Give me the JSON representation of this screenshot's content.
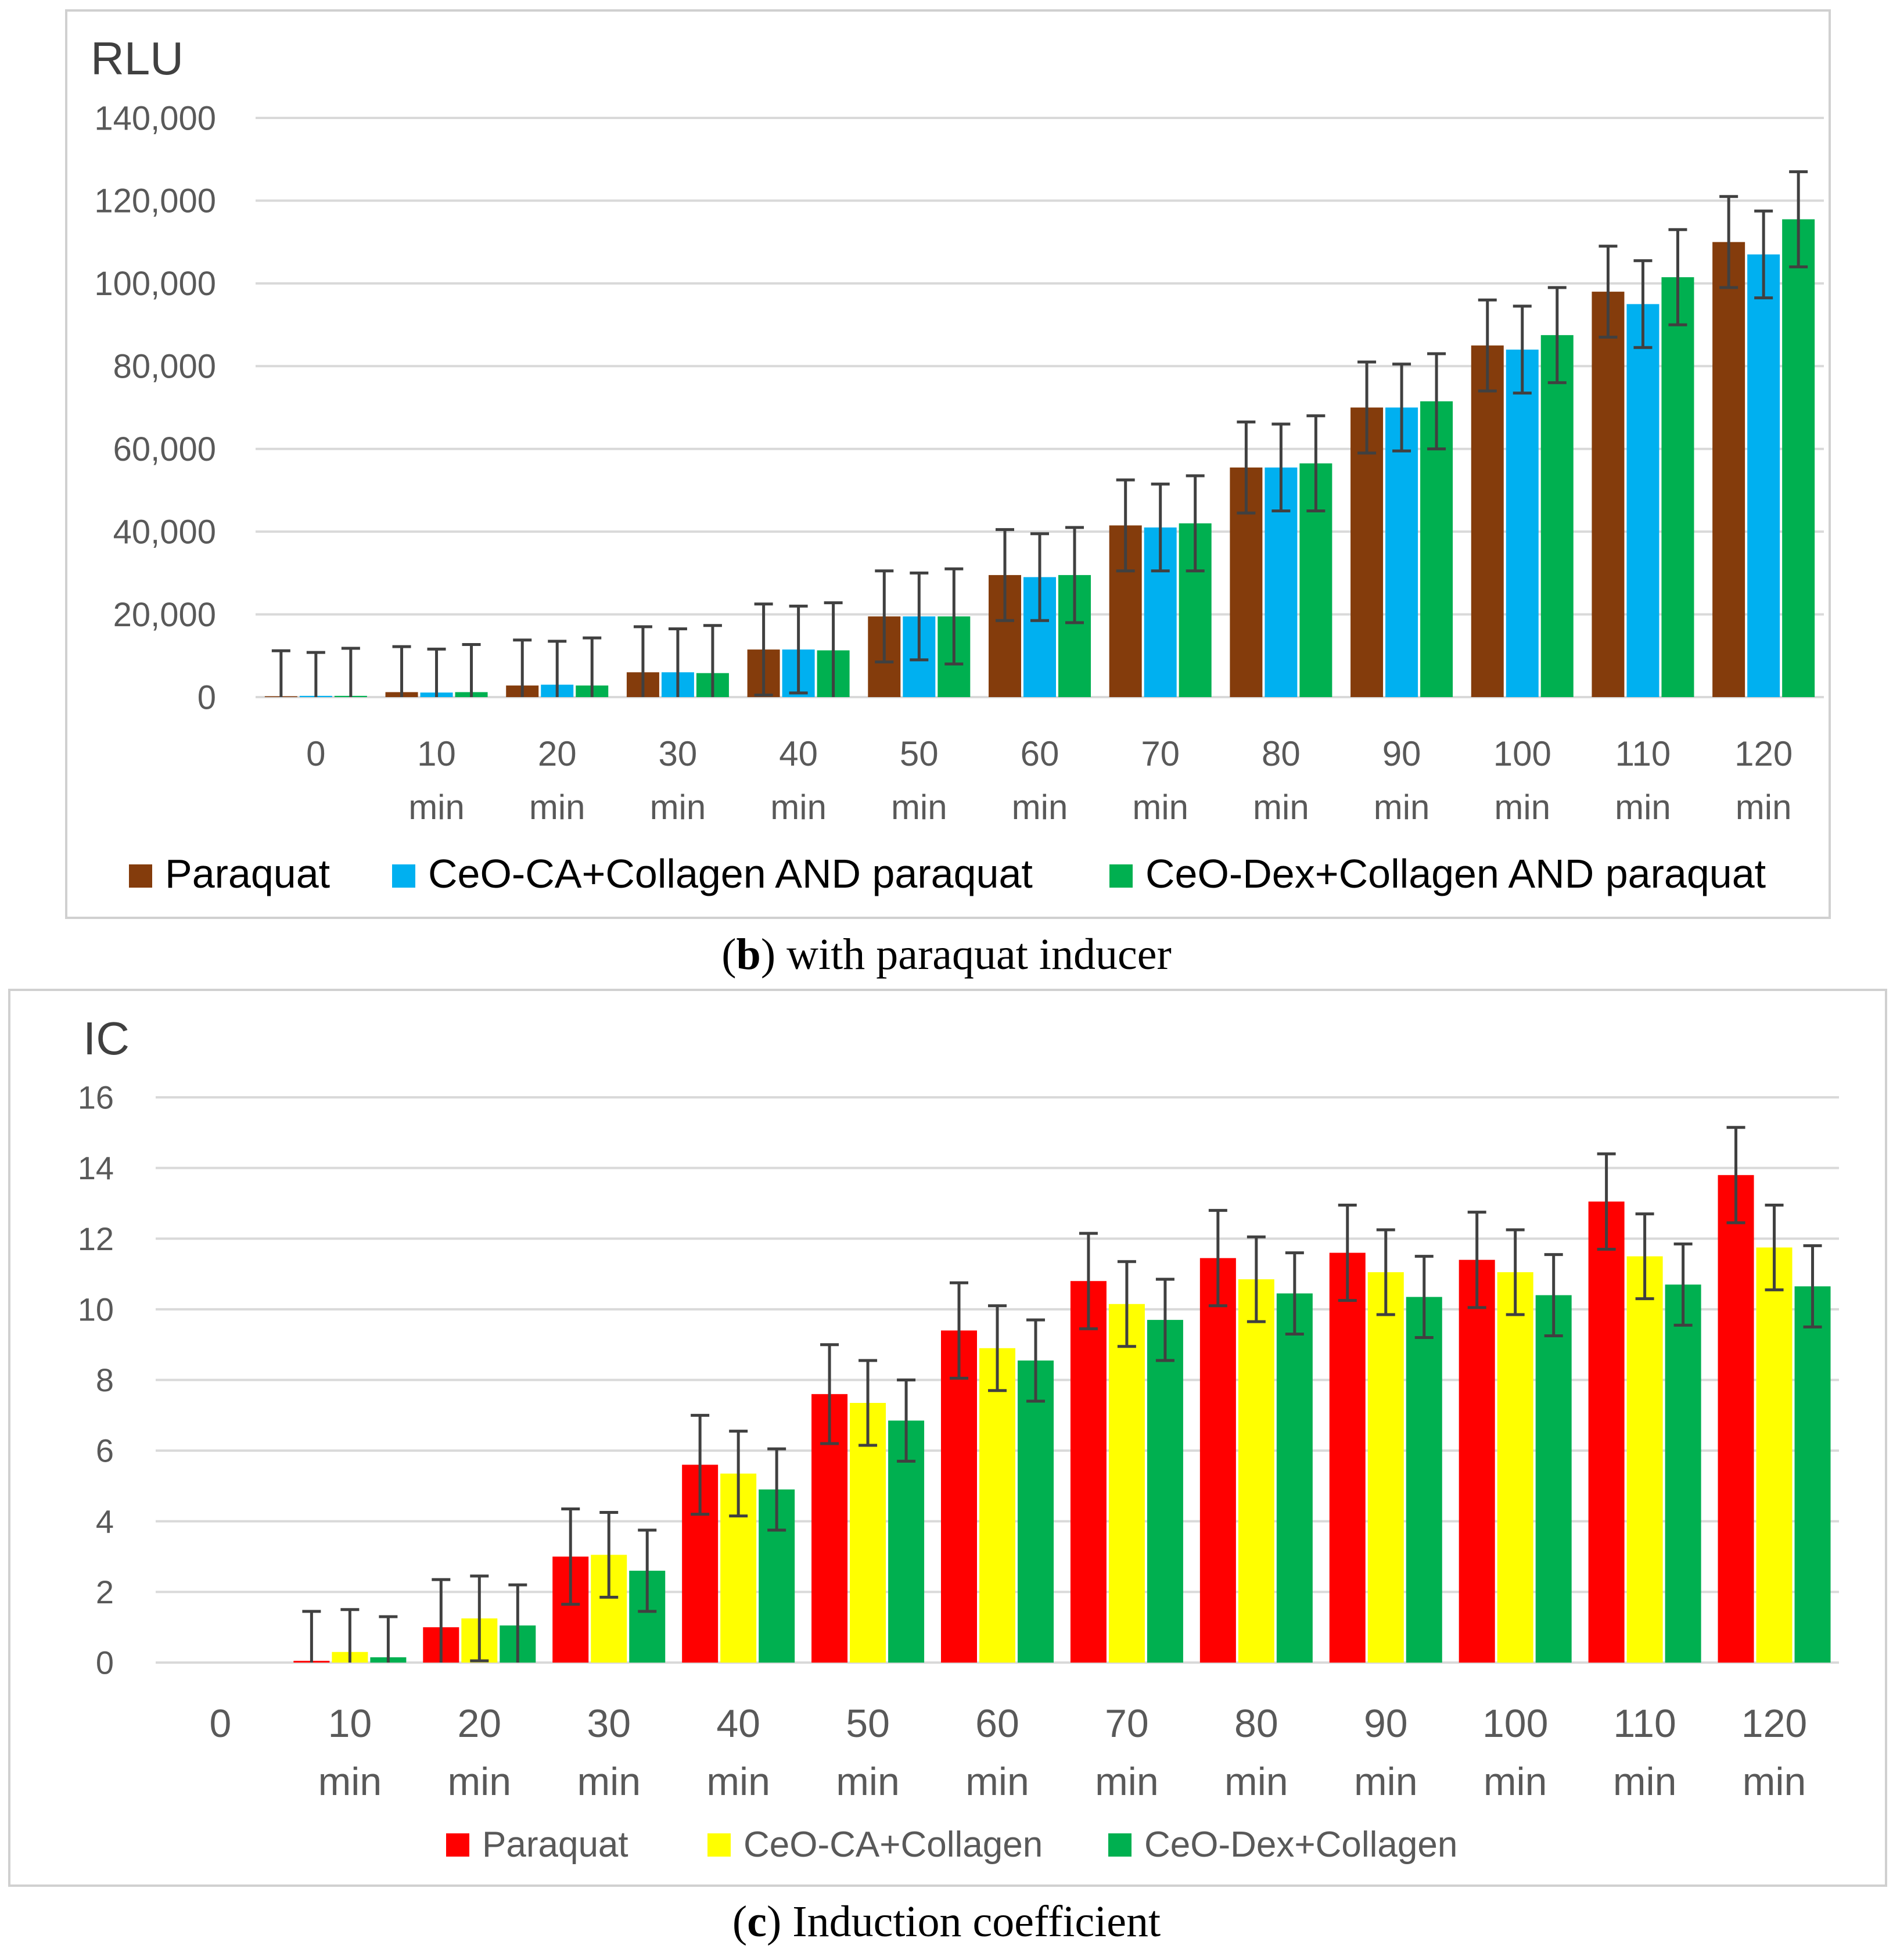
{
  "figures": [
    {
      "caption_letter": "b",
      "caption_text": ") with paraquat inducer"
    },
    {
      "caption_letter": "c",
      "caption_text": ") Induction coefficient"
    }
  ],
  "chart_data": [
    {
      "type": "bar",
      "title": "",
      "ylabel": "RLU",
      "xlabel": "",
      "ylim": [
        0,
        140000
      ],
      "yticks": [
        0,
        20000,
        40000,
        60000,
        80000,
        100000,
        120000,
        140000
      ],
      "ytick_labels": [
        "0",
        "20,000",
        "40,000",
        "60,000",
        "80,000",
        "100,000",
        "120,000",
        "140,000"
      ],
      "categories": [
        [
          "0",
          ""
        ],
        [
          "10",
          "min"
        ],
        [
          "20",
          "min"
        ],
        [
          "30",
          "min"
        ],
        [
          "40",
          "min"
        ],
        [
          "50",
          "min"
        ],
        [
          "60",
          "min"
        ],
        [
          "70",
          "min"
        ],
        [
          "80",
          "min"
        ],
        [
          "90",
          "min"
        ],
        [
          "100",
          "min"
        ],
        [
          "110",
          "min"
        ],
        [
          "120",
          "min"
        ]
      ],
      "series": [
        {
          "name": "Paraquat",
          "color": "#843C0C",
          "values": [
            200,
            1200,
            2800,
            6000,
            11500,
            19500,
            29500,
            41500,
            55500,
            70000,
            85000,
            98000,
            110000
          ],
          "errors": [
            11000,
            11000,
            11000,
            11000,
            11000,
            11000,
            11000,
            11000,
            11000,
            11000,
            11000,
            11000,
            11000
          ]
        },
        {
          "name": "CeO-CA+Collagen AND paraquat",
          "color": "#00B0F0",
          "values": [
            300,
            1100,
            3000,
            6000,
            11500,
            19500,
            29000,
            41000,
            55500,
            70000,
            84000,
            95000,
            107000
          ],
          "errors": [
            10500,
            10500,
            10500,
            10500,
            10500,
            10500,
            10500,
            10500,
            10500,
            10500,
            10500,
            10500,
            10500
          ]
        },
        {
          "name": "CeO-Dex+Collagen AND paraquat",
          "color": "#00B050",
          "values": [
            300,
            1200,
            2800,
            5800,
            11300,
            19500,
            29500,
            42000,
            56500,
            71500,
            87500,
            101500,
            115500
          ],
          "errors": [
            11500,
            11500,
            11500,
            11500,
            11500,
            11500,
            11500,
            11500,
            11500,
            11500,
            11500,
            11500,
            11500
          ]
        }
      ],
      "legend_position": "bottom",
      "grid": true
    },
    {
      "type": "bar",
      "title": "",
      "ylabel": "IC",
      "xlabel": "",
      "ylim": [
        0,
        16
      ],
      "yticks": [
        0,
        2,
        4,
        6,
        8,
        10,
        12,
        14,
        16
      ],
      "ytick_labels": [
        "0",
        "2",
        "4",
        "6",
        "8",
        "10",
        "12",
        "14",
        "16"
      ],
      "categories": [
        [
          "0",
          ""
        ],
        [
          "10",
          "min"
        ],
        [
          "20",
          "min"
        ],
        [
          "30",
          "min"
        ],
        [
          "40",
          "min"
        ],
        [
          "50",
          "min"
        ],
        [
          "60",
          "min"
        ],
        [
          "70",
          "min"
        ],
        [
          "80",
          "min"
        ],
        [
          "90",
          "min"
        ],
        [
          "100",
          "min"
        ],
        [
          "110",
          "min"
        ],
        [
          "120",
          "min"
        ]
      ],
      "series": [
        {
          "name": "Paraquat",
          "color": "#FF0000",
          "values": [
            0,
            0.05,
            1.0,
            3.0,
            5.6,
            7.6,
            9.4,
            10.8,
            11.45,
            11.6,
            11.4,
            13.05,
            13.8
          ],
          "errors": [
            0,
            1.4,
            1.35,
            1.35,
            1.4,
            1.4,
            1.35,
            1.35,
            1.35,
            1.35,
            1.35,
            1.35,
            1.35
          ]
        },
        {
          "name": "CeO-CA+Collagen",
          "color": "#FFFF00",
          "values": [
            0,
            0.3,
            1.25,
            3.05,
            5.35,
            7.35,
            8.9,
            10.15,
            10.85,
            11.05,
            11.05,
            11.5,
            11.75
          ],
          "errors": [
            0,
            1.2,
            1.2,
            1.2,
            1.2,
            1.2,
            1.2,
            1.2,
            1.2,
            1.2,
            1.2,
            1.2,
            1.2
          ]
        },
        {
          "name": "CeO-Dex+Collagen",
          "color": "#00B050",
          "values": [
            0,
            0.15,
            1.05,
            2.6,
            4.9,
            6.85,
            8.55,
            9.7,
            10.45,
            10.35,
            10.4,
            10.7,
            10.65
          ],
          "errors": [
            0,
            1.15,
            1.15,
            1.15,
            1.15,
            1.15,
            1.15,
            1.15,
            1.15,
            1.15,
            1.15,
            1.15,
            1.15
          ]
        }
      ],
      "legend_position": "bottom",
      "grid": true
    }
  ]
}
